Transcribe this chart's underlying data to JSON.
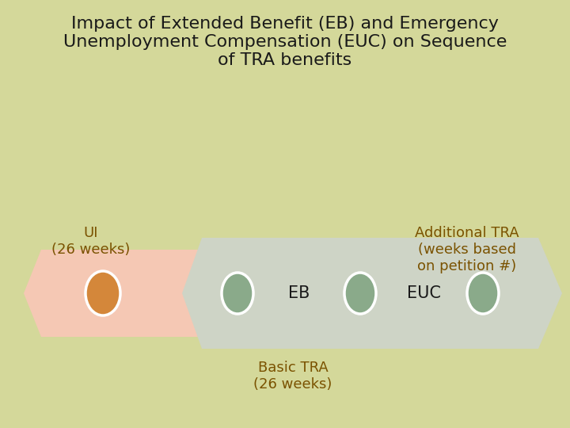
{
  "title": "Impact of Extended Benefit (EB) and Emergency\nUnemployment Compensation (EUC) on Sequence\nof TRA benefits",
  "title_fontsize": 16,
  "background_color": "#d4d89a",
  "text_color_dark": "#1a1a1a",
  "text_color_brown": "#7a5200",
  "arrow1_color": "#f5c8b4",
  "arrow2_color": "#ced4c6",
  "circle_orange": "#d4873a",
  "circle_gray": "#8aaa8a",
  "label_ui": "UI\n(26 weeks)",
  "label_eb": "EB",
  "label_euc": "EUC",
  "label_basic_tra": "Basic TRA\n(26 weeks)",
  "label_add_tra": "Additional TRA\n(weeks based\non petition #)"
}
